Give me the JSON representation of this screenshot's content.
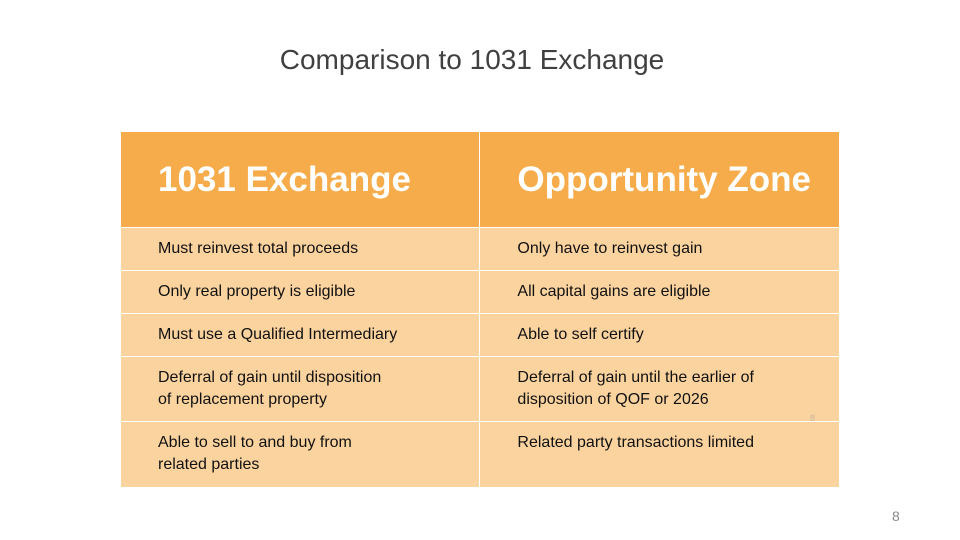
{
  "slide": {
    "title": "Comparison to 1031 Exchange",
    "page_number": "8",
    "faint_number": "8"
  },
  "table": {
    "headers": [
      "1031 Exchange",
      "Opportunity Zone"
    ],
    "rows": [
      {
        "left": [
          "Must reinvest total proceeds"
        ],
        "right": [
          "Only have to reinvest gain"
        ]
      },
      {
        "left": [
          "Only real property is eligible"
        ],
        "right": [
          "All capital gains are eligible"
        ]
      },
      {
        "left": [
          "Must use a Qualified Intermediary"
        ],
        "right": [
          "Able to self certify"
        ]
      },
      {
        "left": [
          "Deferral of gain until disposition",
          "of replacement property"
        ],
        "right": [
          "Deferral of gain until the earlier of",
          "disposition of QOF or 2026"
        ]
      },
      {
        "left": [
          "Able to sell to and buy from",
          "related parties"
        ],
        "right": [
          "Related party transactions limited"
        ]
      }
    ]
  },
  "colors": {
    "header_bg": "#f7ac4b",
    "row_bg": "#fbd39f",
    "title_text": "#404040"
  }
}
